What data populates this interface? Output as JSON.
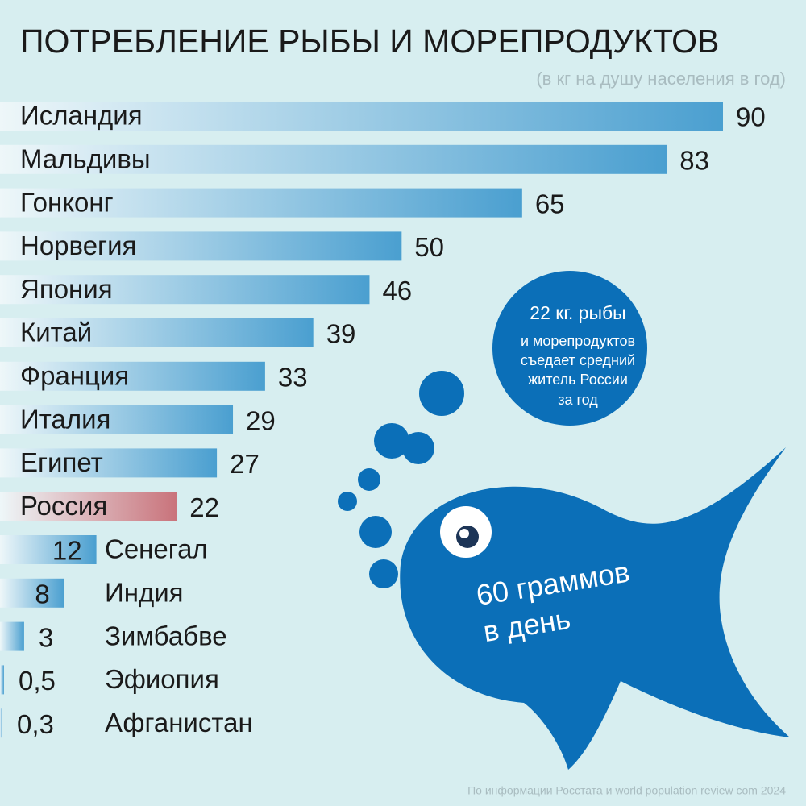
{
  "chart_data": {
    "type": "bar",
    "title": "ПОТРЕБЛЕНИЕ РЫБЫ И МОРЕПРОДУКТОВ",
    "subtitle": "(в кг на душу населения в год)",
    "categories": [
      "Исландия",
      "Мальдивы",
      "Гонконг",
      "Норвегия",
      "Япония",
      "Китай",
      "Франция",
      "Италия",
      "Египет",
      "Россия",
      "Сенегал",
      "Индия",
      "Зимбабве",
      "Эфиопия",
      "Афганистан"
    ],
    "values": [
      90,
      83,
      65,
      50,
      46,
      39,
      33,
      29,
      27,
      22,
      12,
      8,
      3,
      0.5,
      0.3
    ],
    "value_labels": [
      "90",
      "83",
      "65",
      "50",
      "46",
      "39",
      "33",
      "29",
      "27",
      "22",
      "12",
      "8",
      "3",
      "0,5",
      "0,3"
    ],
    "colors": [
      "#4a9fd0",
      "#4a9fd0",
      "#4a9fd0",
      "#4a9fd0",
      "#4a9fd0",
      "#4a9fd0",
      "#4a9fd0",
      "#4a9fd0",
      "#4a9fd0",
      "#c9737b",
      "#4a9fd0",
      "#4a9fd0",
      "#4a9fd0",
      "#4a9fd0",
      "#4a9fd0"
    ],
    "annotations": {
      "circle": [
        "22 кг. рыбы",
        "и морепродуктов",
        "съедает средний",
        "житель России",
        "за год"
      ],
      "fish": [
        "60 граммов",
        "в день"
      ]
    },
    "source": "По информации Росстата и world population review com 2024"
  }
}
